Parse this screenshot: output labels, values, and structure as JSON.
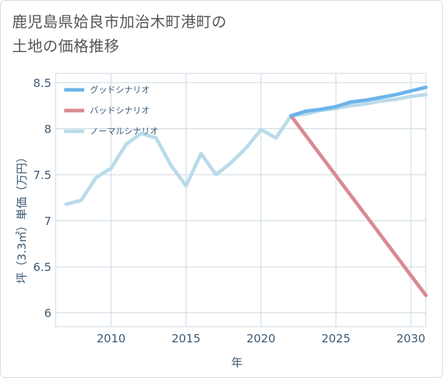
{
  "title_line1": "鹿児島県姶良市加治木町港町の",
  "title_line2": "土地の価格推移",
  "chart_data": {
    "type": "line",
    "xlabel": "年",
    "ylabel": "坪（3.3㎡）単価（万円）",
    "xlim": [
      2006.3,
      2031
    ],
    "ylim": [
      5.85,
      8.6
    ],
    "xticks": [
      2010,
      2015,
      2020,
      2025,
      2030
    ],
    "yticks": [
      6,
      6.5,
      7,
      7.5,
      8,
      8.5
    ],
    "grid": true,
    "legend_position": "top-left",
    "series": [
      {
        "name": "グッドシナリオ",
        "color": "#6cb4ea",
        "x": [
          2022,
          2023,
          2024,
          2025,
          2026,
          2027,
          2028,
          2029,
          2030,
          2031
        ],
        "y": [
          8.14,
          8.19,
          8.21,
          8.24,
          8.29,
          8.31,
          8.34,
          8.37,
          8.41,
          8.45
        ]
      },
      {
        "name": "バッドシナリオ",
        "color": "#d98a92",
        "x": [
          2022,
          2031
        ],
        "y": [
          8.14,
          6.19
        ]
      },
      {
        "name": "ノーマルシナリオ",
        "color": "#b9dbea",
        "x": [
          2007,
          2008,
          2009,
          2010,
          2011,
          2012,
          2013,
          2014,
          2015,
          2016,
          2017,
          2018,
          2019,
          2020,
          2021,
          2022,
          2023,
          2024,
          2025,
          2026,
          2027,
          2028,
          2029,
          2030,
          2031
        ],
        "y": [
          7.18,
          7.22,
          7.47,
          7.57,
          7.83,
          7.95,
          7.9,
          7.6,
          7.38,
          7.73,
          7.5,
          7.63,
          7.79,
          7.99,
          7.9,
          8.14,
          8.16,
          8.2,
          8.22,
          8.25,
          8.27,
          8.3,
          8.32,
          8.35,
          8.37
        ]
      }
    ]
  }
}
